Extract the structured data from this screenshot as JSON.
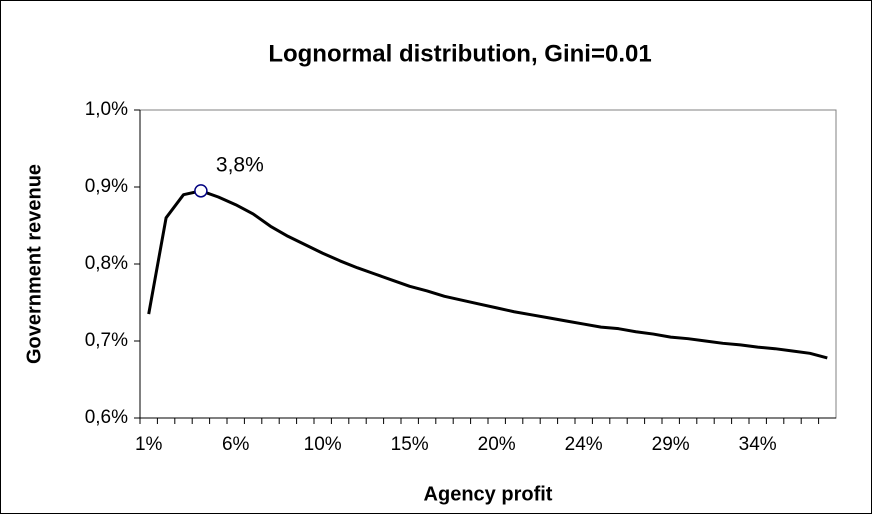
{
  "chart_data": {
    "type": "line",
    "title": "Lognormal distribution, Gini=0.01",
    "x_label": "Agency profit",
    "y_label": "Government revenue",
    "categories": [
      "1%",
      null,
      null,
      null,
      null,
      "6%",
      null,
      null,
      null,
      null,
      "10%",
      null,
      null,
      null,
      null,
      "15%",
      null,
      null,
      null,
      null,
      "20%",
      null,
      null,
      null,
      null,
      "24%",
      null,
      null,
      null,
      null,
      "29%",
      null,
      null,
      null,
      null,
      "34%",
      null,
      null,
      null,
      null
    ],
    "series": [
      {
        "name": "Government revenue",
        "color": "#000000",
        "values": [
          0.735,
          0.86,
          0.89,
          0.895,
          0.887,
          0.877,
          0.865,
          0.849,
          0.836,
          0.825,
          0.814,
          0.804,
          0.795,
          0.787,
          0.779,
          0.771,
          0.765,
          0.758,
          0.753,
          0.748,
          0.743,
          0.738,
          0.734,
          0.73,
          0.726,
          0.722,
          0.718,
          0.716,
          0.712,
          0.709,
          0.705,
          0.703,
          0.7,
          0.697,
          0.695,
          0.692,
          0.69,
          0.687,
          0.684,
          0.678
        ]
      }
    ],
    "annotations": [
      {
        "text": "3,8%",
        "index": 3
      }
    ],
    "ylim": [
      0.6,
      1.0
    ],
    "yticks": [
      {
        "value": 0.6,
        "label": "0,6%"
      },
      {
        "value": 0.7,
        "label": "0,7%"
      },
      {
        "value": 0.8,
        "label": "0,8%"
      },
      {
        "value": 0.9,
        "label": "0,9%"
      },
      {
        "value": 1.0,
        "label": "1,0%"
      }
    ],
    "grid": false
  }
}
